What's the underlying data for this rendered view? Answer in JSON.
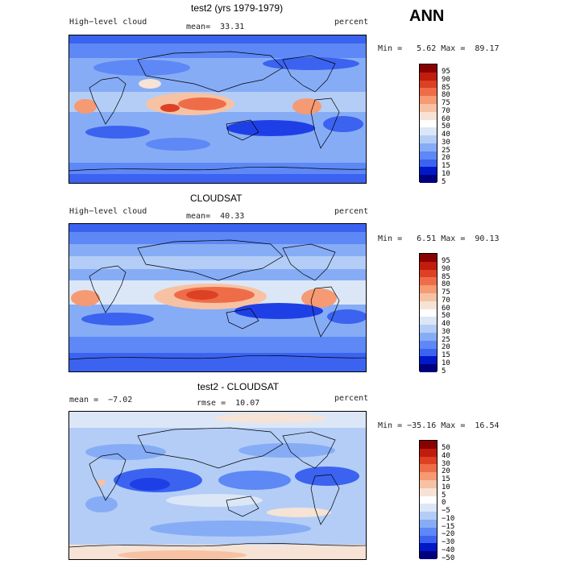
{
  "season": "ANN",
  "panels": [
    {
      "title": "test2 (yrs 1979-1979)",
      "left_label": "High−level cloud",
      "stat1": "mean=  33.31",
      "stat2": "",
      "units": "percent",
      "minmax": "Min =   5.62 Max =  89.17",
      "colorbar_levels": [
        "95",
        "90",
        "85",
        "80",
        "75",
        "70",
        "60",
        "50",
        "40",
        "30",
        "25",
        "20",
        "15",
        "10",
        "5"
      ]
    },
    {
      "title": "CLOUDSAT",
      "left_label": "High−level cloud",
      "stat1": "mean=  40.33",
      "stat2": "",
      "units": "percent",
      "minmax": "Min =   6.51 Max =  90.13",
      "colorbar_levels": [
        "95",
        "90",
        "85",
        "80",
        "75",
        "70",
        "60",
        "50",
        "40",
        "30",
        "25",
        "20",
        "15",
        "10",
        "5"
      ]
    },
    {
      "title": "test2 - CLOUDSAT",
      "left_label": "mean =  −7.02",
      "stat1": "rmse =  10.07",
      "stat2": "",
      "units": "percent",
      "minmax": "Min = −35.16 Max =  16.54",
      "colorbar_levels": [
        "50",
        "40",
        "30",
        "20",
        "15",
        "10",
        "5",
        "0",
        "−5",
        "−10",
        "−15",
        "−20",
        "−30",
        "−40",
        "−50"
      ]
    }
  ],
  "colors": {
    "scale": [
      "#00007f",
      "#0018c8",
      "#1f3fe6",
      "#3b63f0",
      "#5d88f5",
      "#86acf6",
      "#b3cdf6",
      "#dbe7f7",
      "#f6e3d6",
      "#f7c2a3",
      "#f59a73",
      "#ee6d48",
      "#dc4124",
      "#c01d0d",
      "#8a0000"
    ]
  }
}
